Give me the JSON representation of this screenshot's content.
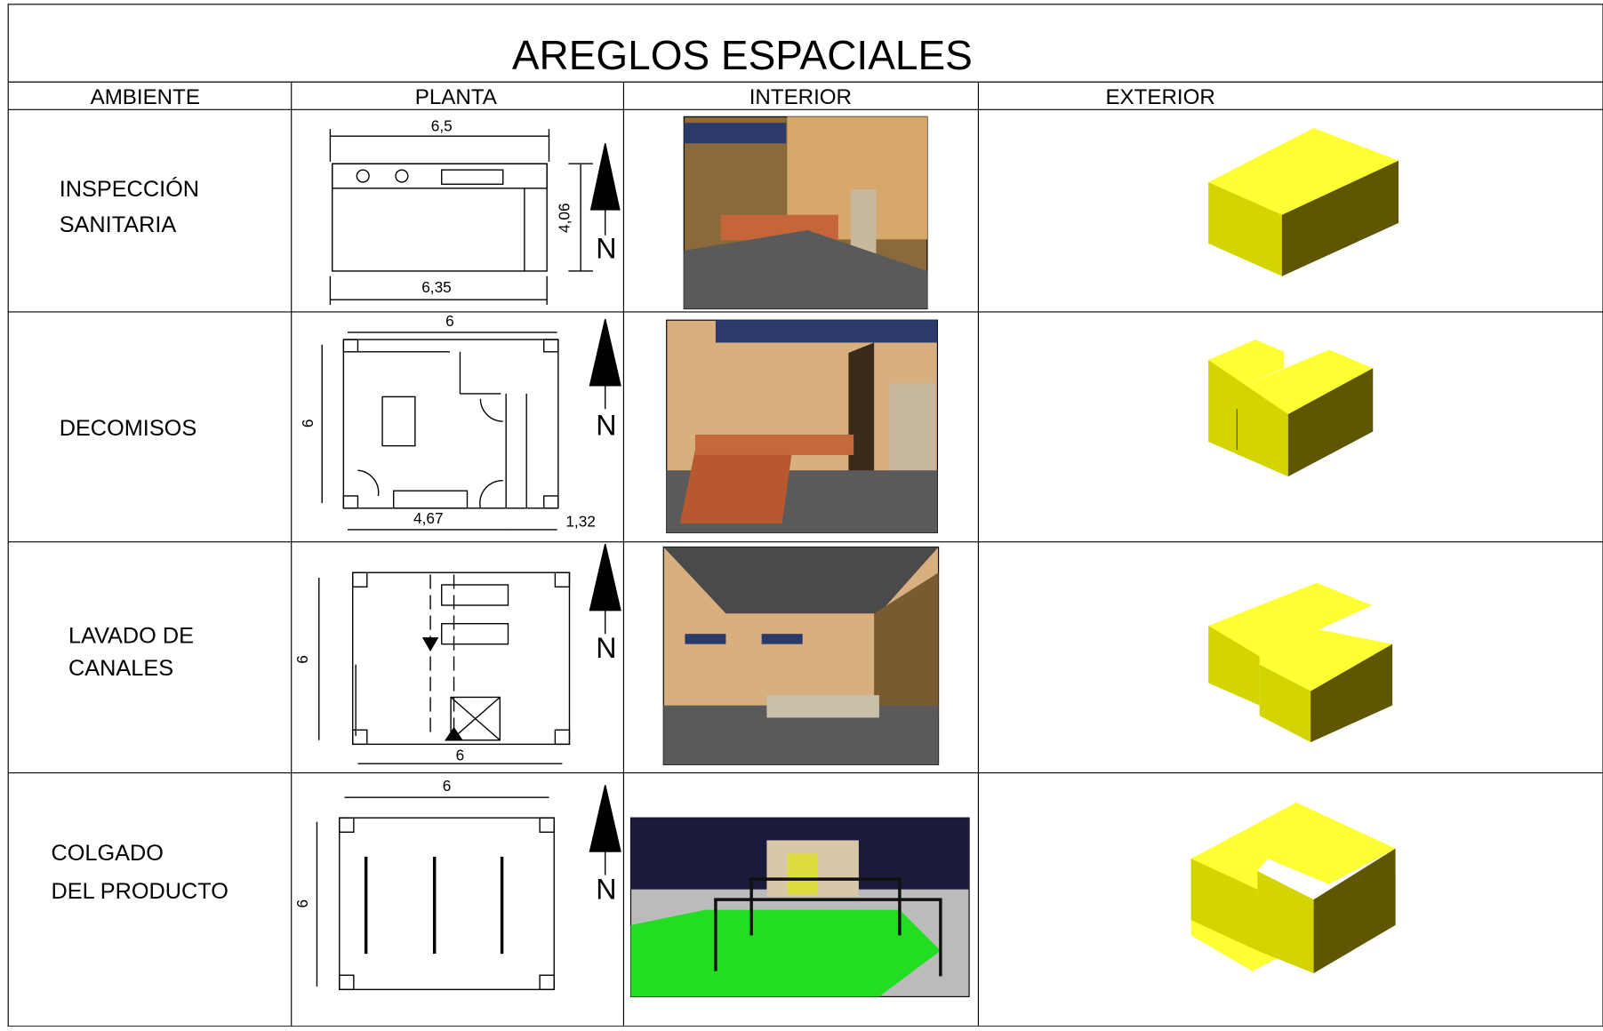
{
  "title": "AREGLOS ESPACIALES",
  "table": {
    "headers": [
      "AMBIENTE",
      "PLANTA",
      "INTERIOR",
      "EXTERIOR"
    ],
    "rows": [
      {
        "ambiente": [
          "INSPECCIÓN",
          "SANITARIA"
        ],
        "planta": {
          "dimensions": [
            "6,5",
            "4,06",
            "6,35"
          ],
          "north": "N"
        }
      },
      {
        "ambiente": [
          "DECOMISOS"
        ],
        "planta": {
          "dimensions": [
            "6",
            "6",
            "4,67",
            "1,32"
          ],
          "north": "N"
        }
      },
      {
        "ambiente": [
          "LAVADO DE",
          "CANALES"
        ],
        "planta": {
          "dimensions": [
            "6",
            "6"
          ],
          "north": "N"
        }
      },
      {
        "ambiente": [
          "COLGADO",
          "DEL PRODUCTO"
        ],
        "planta": {
          "dimensions": [
            "6",
            "6"
          ],
          "north": "N"
        }
      }
    ]
  }
}
